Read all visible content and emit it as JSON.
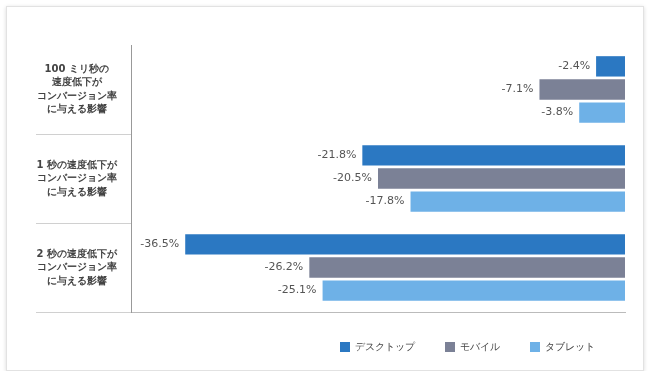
{
  "chart_data": {
    "type": "bar",
    "orientation": "horizontal",
    "categories": [
      "100 ミリ秒の\n速度低下が\nコンバージョン率\nに与える影響",
      "1 秒の速度低下が\nコンバージョン率\nに与える影響",
      "2 秒の速度低下が\nコンバージョン率\nに与える影響"
    ],
    "series": [
      {
        "name": "デスクトップ",
        "color": "#2b78c2",
        "values": [
          -2.4,
          -21.8,
          -36.5
        ],
        "value_labels": [
          "-2.4%",
          "-21.8%",
          "-36.5%"
        ]
      },
      {
        "name": "モバイル",
        "color": "#7b8196",
        "values": [
          -7.1,
          -20.5,
          -26.2
        ],
        "value_labels": [
          "-7.1%",
          "-20.5%",
          "-26.2%"
        ]
      },
      {
        "name": "タブレット",
        "color": "#6eb1e7",
        "values": [
          -3.8,
          -17.8,
          -25.1
        ],
        "value_labels": [
          "-3.8%",
          "-17.8%",
          "-25.1%"
        ]
      }
    ],
    "xlim": [
      -41,
      0
    ],
    "grid": false,
    "tick_labels": "y",
    "data_labels": true,
    "legend": "bottom right"
  }
}
